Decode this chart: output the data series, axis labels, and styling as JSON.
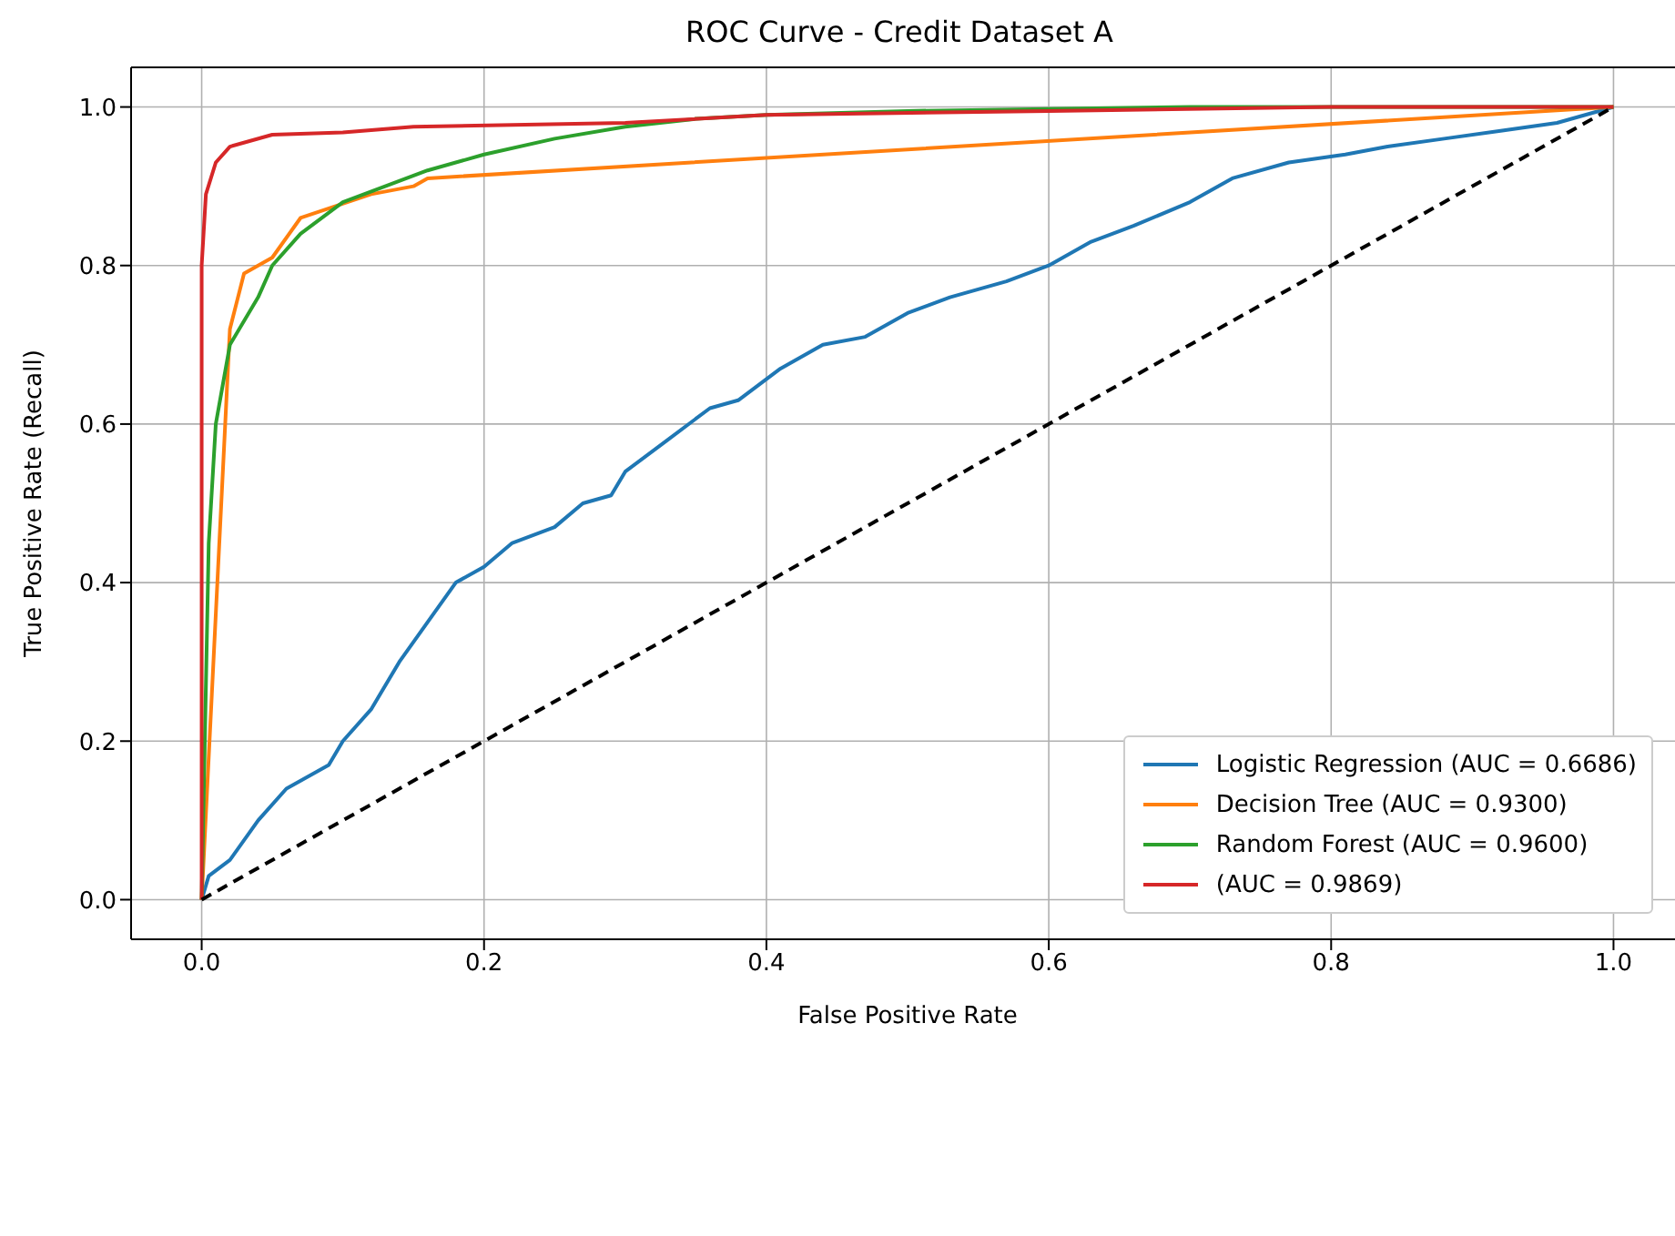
{
  "chart_data": {
    "type": "line",
    "title": "ROC Curve - Credit Dataset A",
    "xlabel": "False Positive Rate",
    "ylabel": "True Positive Rate (Recall)",
    "xlim": [
      -0.05,
      1.05
    ],
    "ylim": [
      -0.05,
      1.05
    ],
    "xticks": [
      {
        "value": 0,
        "label": "0.0"
      },
      {
        "value": 0.2,
        "label": "0.2"
      },
      {
        "value": 0.4,
        "label": "0.4"
      },
      {
        "value": 0.6,
        "label": "0.6"
      },
      {
        "value": 0.8,
        "label": "0.8"
      },
      {
        "value": 1,
        "label": "1.0"
      }
    ],
    "yticks": [
      {
        "value": 0,
        "label": "0.0"
      },
      {
        "value": 0.2,
        "label": "0.2"
      },
      {
        "value": 0.4,
        "label": "0.4"
      },
      {
        "value": 0.6,
        "label": "0.6"
      },
      {
        "value": 0.8,
        "label": "0.8"
      },
      {
        "value": 1,
        "label": "1.0"
      }
    ],
    "grid": true,
    "legend": "bottom right",
    "marker": "none",
    "series": [
      {
        "name": "Logistic Regression (AUC = 0.6686)",
        "color": "#1f77b4",
        "x": [
          0,
          0.005,
          0.02,
          0.04,
          0.06,
          0.09,
          0.1,
          0.12,
          0.14,
          0.16,
          0.18,
          0.2,
          0.22,
          0.25,
          0.27,
          0.29,
          0.3,
          0.33,
          0.36,
          0.38,
          0.41,
          0.44,
          0.47,
          0.5,
          0.53,
          0.57,
          0.6,
          0.63,
          0.66,
          0.7,
          0.73,
          0.77,
          0.81,
          0.84,
          0.88,
          0.92,
          0.96,
          1
        ],
        "values": [
          0,
          0.03,
          0.05,
          0.1,
          0.14,
          0.17,
          0.2,
          0.24,
          0.3,
          0.35,
          0.4,
          0.42,
          0.45,
          0.47,
          0.5,
          0.51,
          0.54,
          0.58,
          0.62,
          0.63,
          0.67,
          0.7,
          0.71,
          0.74,
          0.76,
          0.78,
          0.8,
          0.83,
          0.85,
          0.88,
          0.91,
          0.93,
          0.94,
          0.95,
          0.96,
          0.97,
          0.98,
          1
        ]
      },
      {
        "name": "Decision Tree (AUC = 0.9300)",
        "color": "#ff7f0e",
        "x": [
          0,
          0.02,
          0.03,
          0.05,
          0.07,
          0.12,
          0.15,
          0.16,
          1
        ],
        "values": [
          0,
          0.72,
          0.79,
          0.81,
          0.86,
          0.89,
          0.9,
          0.91,
          1
        ]
      },
      {
        "name": "Random Forest (AUC = 0.9600)",
        "color": "#2ca02c",
        "x": [
          0,
          0.005,
          0.01,
          0.02,
          0.04,
          0.05,
          0.07,
          0.1,
          0.13,
          0.16,
          0.2,
          0.25,
          0.3,
          0.35,
          0.4,
          0.5,
          0.7,
          1
        ],
        "values": [
          0,
          0.45,
          0.6,
          0.7,
          0.76,
          0.8,
          0.84,
          0.88,
          0.9,
          0.92,
          0.94,
          0.96,
          0.975,
          0.985,
          0.99,
          0.995,
          1,
          1
        ]
      },
      {
        "name": "(AUC = 0.9869)",
        "color": "#d62728",
        "x": [
          0,
          0,
          0.003,
          0.01,
          0.02,
          0.05,
          0.1,
          0.15,
          0.3,
          0.4,
          0.6,
          0.8,
          1
        ],
        "values": [
          0,
          0.8,
          0.89,
          0.93,
          0.95,
          0.965,
          0.968,
          0.975,
          0.98,
          0.99,
          0.995,
          1,
          1
        ]
      },
      {
        "color": "#000000",
        "line_style": "dashed",
        "x": [
          0,
          1
        ],
        "values": [
          0,
          1
        ]
      }
    ]
  }
}
